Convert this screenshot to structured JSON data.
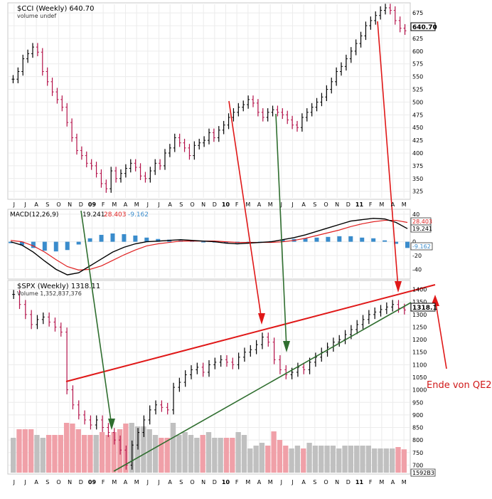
{
  "chart_data": [
    {
      "type": "ohlc",
      "title": "$CCI (Weekly) 640.70",
      "subtitle": "volume undef",
      "last_value_label": "640.70",
      "xlabels": [
        "J",
        "J",
        "A",
        "S",
        "O",
        "N",
        "D",
        "09",
        "F",
        "M",
        "A",
        "M",
        "J",
        "J",
        "A",
        "S",
        "O",
        "N",
        "D",
        "10",
        "F",
        "M",
        "A",
        "M",
        "J",
        "J",
        "A",
        "S",
        "O",
        "N",
        "D",
        "11",
        "F",
        "M",
        "A",
        "M"
      ],
      "yticks": [
        325,
        350,
        375,
        400,
        425,
        450,
        475,
        500,
        525,
        550,
        575,
        600,
        625,
        650,
        675
      ],
      "ylim": [
        312,
        692
      ],
      "series_close": [
        545,
        560,
        585,
        595,
        608,
        598,
        560,
        540,
        520,
        505,
        490,
        460,
        430,
        405,
        395,
        380,
        375,
        360,
        340,
        330,
        365,
        350,
        360,
        370,
        380,
        372,
        355,
        350,
        365,
        380,
        375,
        400,
        410,
        430,
        420,
        410,
        395,
        415,
        420,
        425,
        440,
        430,
        445,
        455,
        470,
        480,
        490,
        495,
        505,
        498,
        480,
        470,
        480,
        485,
        480,
        475,
        465,
        455,
        450,
        470,
        480,
        490,
        500,
        510,
        525,
        540,
        560,
        570,
        585,
        600,
        615,
        630,
        650,
        660,
        670,
        680,
        685,
        680,
        660,
        645,
        640
      ],
      "up_color": "#000000",
      "down_color": "#b4124a"
    },
    {
      "type": "macd",
      "title": "MACD(12,26,9)",
      "macd_label": "19.241",
      "signal_label": "28.403",
      "hist_label": "-9.162",
      "yticks": [
        40,
        20,
        0,
        -20,
        -40
      ],
      "ylim": [
        -52,
        45
      ],
      "box_labels": [
        "28.403",
        "19.241",
        "-9.162"
      ],
      "macd": [
        0,
        -5,
        -15,
        -28,
        -40,
        -48,
        -45,
        -35,
        -25,
        -15,
        -8,
        -3,
        0,
        1,
        2,
        3,
        2,
        1,
        0,
        -2,
        -3,
        -2,
        -1,
        0,
        3,
        6,
        10,
        15,
        20,
        25,
        30,
        32,
        34,
        33,
        28,
        19
      ],
      "signal": [
        2,
        0,
        -6,
        -15,
        -26,
        -36,
        -41,
        -40,
        -35,
        -27,
        -19,
        -12,
        -6,
        -3,
        -1,
        1,
        1,
        1,
        1,
        0,
        -1,
        -1,
        -1,
        -1,
        0,
        2,
        5,
        9,
        13,
        17,
        22,
        26,
        29,
        31,
        31,
        28
      ],
      "line_colors": [
        "#000000",
        "#e02020"
      ],
      "hist_color": "#3a8ccc"
    },
    {
      "type": "ohlc",
      "title": "$SPX (Weekly) 1318.11",
      "subtitle": "Volume 1,352,837,376",
      "last_value_label": "1318.1",
      "volume_label": "1592B3",
      "xlabels": [
        "J",
        "J",
        "A",
        "S",
        "O",
        "N",
        "D",
        "09",
        "F",
        "M",
        "A",
        "M",
        "J",
        "J",
        "A",
        "S",
        "O",
        "N",
        "D",
        "10",
        "F",
        "M",
        "A",
        "M",
        "J",
        "J",
        "A",
        "S",
        "O",
        "N",
        "D",
        "11",
        "F",
        "M",
        "A",
        "M"
      ],
      "yticks": [
        700,
        750,
        800,
        850,
        900,
        950,
        1000,
        1050,
        1100,
        1150,
        1200,
        1250,
        1300,
        1350,
        1400
      ],
      "ylim": [
        670,
        1430
      ],
      "series_close": [
        1380,
        1340,
        1300,
        1260,
        1280,
        1290,
        1270,
        1250,
        1230,
        1000,
        940,
        900,
        880,
        860,
        880,
        850,
        830,
        800,
        760,
        700,
        780,
        830,
        880,
        920,
        940,
        930,
        920,
        1010,
        1030,
        1060,
        1080,
        1090,
        1070,
        1100,
        1110,
        1120,
        1110,
        1100,
        1130,
        1150,
        1160,
        1180,
        1210,
        1190,
        1120,
        1080,
        1060,
        1070,
        1090,
        1080,
        1110,
        1130,
        1150,
        1170,
        1190,
        1200,
        1220,
        1240,
        1260,
        1280,
        1300,
        1310,
        1320,
        1330,
        1340,
        1325,
        1318
      ],
      "up_color": "#000000",
      "down_color": "#b4124a",
      "volume_up_color": "#c0c0c0",
      "volume_down_color": "#f0a0a8"
    }
  ],
  "annotations": {
    "qe2_label": "Ende von QE2"
  }
}
